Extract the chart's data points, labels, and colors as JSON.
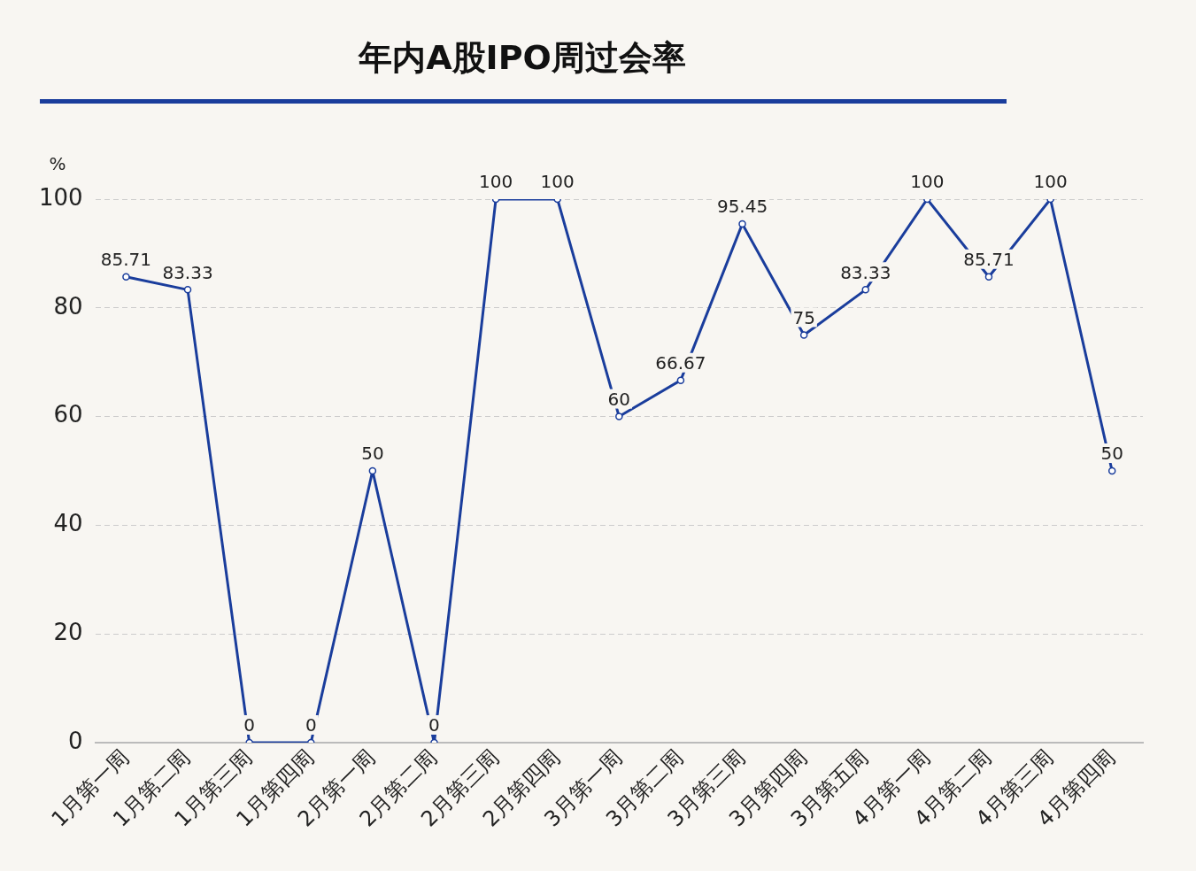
{
  "chart_data": {
    "type": "line",
    "title": "年内A股IPO周过会率",
    "ylabel": "%",
    "categories": [
      "1月第一周",
      "1月第二周",
      "1月第三周",
      "1月第四周",
      "2月第一周",
      "2月第二周",
      "2月第三周",
      "2月第四周",
      "3月第一周",
      "3月第二周",
      "3月第三周",
      "3月第四周",
      "3月第五周",
      "4月第一周",
      "4月第二周",
      "4月第三周",
      "4月第四周"
    ],
    "series": [
      {
        "color": "#1a3d9c",
        "values": [
          85.71,
          83.33,
          0,
          0,
          50,
          0,
          100,
          100,
          60,
          66.67,
          95.45,
          75,
          83.33,
          100,
          85.71,
          100,
          50
        ]
      }
    ],
    "ylim": [
      0,
      100
    ],
    "yticks": [
      0,
      20,
      40,
      60,
      80,
      100
    ],
    "grid": "y",
    "legend": false,
    "marker": "circle",
    "line_style": "solid",
    "data_labels": true
  }
}
